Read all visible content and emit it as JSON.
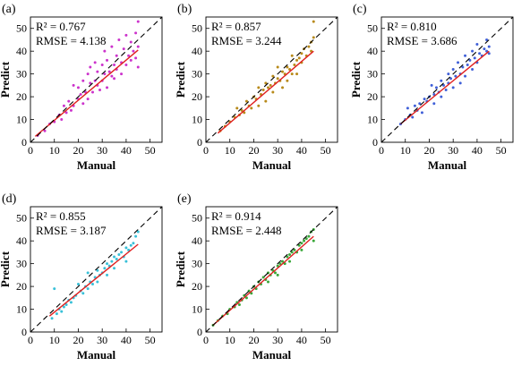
{
  "figure": {
    "axis_labels": {
      "x": "Manual",
      "y": "Predict"
    },
    "ticks": [
      0,
      10,
      20,
      30,
      40,
      50
    ]
  },
  "chart_data": [
    {
      "type": "scatter",
      "panel_label": "(a)",
      "title": "",
      "xlabel": "Manual",
      "ylabel": "Predict",
      "xlim": [
        0,
        55
      ],
      "ylim": [
        0,
        55
      ],
      "stats": [
        "R² = 0.767",
        "RMSE = 4.138"
      ],
      "point_color": "#cc33cc",
      "fit_line": {
        "color": "#e02020",
        "x": [
          2,
          45
        ],
        "y": [
          2.6,
          40.5
        ]
      },
      "reference_line": {
        "style": "dashed",
        "x": [
          0,
          55
        ],
        "y": [
          0,
          55
        ]
      },
      "x": [
        3,
        6,
        8,
        10,
        12,
        13,
        14,
        15,
        16,
        17,
        18,
        18,
        20,
        20,
        21,
        22,
        22,
        23,
        24,
        24,
        25,
        25,
        26,
        27,
        27,
        28,
        28,
        29,
        30,
        30,
        31,
        31,
        32,
        32,
        33,
        34,
        34,
        35,
        35,
        36,
        36,
        37,
        38,
        38,
        39,
        40,
        40,
        41,
        42,
        42,
        43,
        44,
        44,
        45,
        45,
        45
      ],
      "y": [
        3,
        5,
        8,
        9,
        12,
        10,
        16,
        13,
        18,
        14,
        25,
        16,
        19,
        24,
        21,
        27,
        17,
        22,
        30,
        19,
        26,
        33,
        22,
        27,
        35,
        25,
        31,
        23,
        27,
        34,
        30,
        40,
        24,
        36,
        31,
        29,
        42,
        34,
        28,
        38,
        32,
        45,
        35,
        30,
        41,
        34,
        47,
        38,
        36,
        44,
        40,
        37,
        48,
        42,
        53,
        33
      ]
    },
    {
      "type": "scatter",
      "panel_label": "(b)",
      "title": "",
      "xlabel": "Manual",
      "ylabel": "Predict",
      "xlim": [
        0,
        55
      ],
      "ylim": [
        0,
        55
      ],
      "stats": [
        "R² = 0.857",
        "RMSE = 3.244"
      ],
      "point_color": "#b88a1a",
      "fit_line": {
        "color": "#e02020",
        "x": [
          5,
          45
        ],
        "y": [
          4,
          40
        ]
      },
      "reference_line": {
        "style": "dashed",
        "x": [
          0,
          55
        ],
        "y": [
          0,
          55
        ]
      },
      "x": [
        6,
        8,
        10,
        12,
        13,
        14,
        15,
        16,
        17,
        18,
        19,
        20,
        21,
        22,
        22,
        23,
        24,
        25,
        25,
        26,
        27,
        28,
        28,
        29,
        30,
        30,
        31,
        32,
        32,
        33,
        34,
        34,
        35,
        36,
        36,
        37,
        38,
        38,
        39,
        40,
        40,
        41,
        42,
        43,
        44,
        44,
        45,
        45
      ],
      "y": [
        5,
        7,
        9,
        11,
        15,
        12,
        14,
        13,
        18,
        16,
        15,
        20,
        19,
        24,
        16,
        21,
        23,
        26,
        18,
        24,
        25,
        29,
        22,
        26,
        28,
        33,
        27,
        31,
        24,
        30,
        33,
        27,
        32,
        38,
        30,
        34,
        36,
        30,
        37,
        39,
        35,
        41,
        38,
        42,
        40,
        44,
        46,
        53
      ]
    },
    {
      "type": "scatter",
      "panel_label": "(c)",
      "title": "",
      "xlabel": "Manual",
      "ylabel": "Predict",
      "xlim": [
        0,
        55
      ],
      "ylim": [
        0,
        55
      ],
      "stats": [
        "R² = 0.810",
        "RMSE = 3.686"
      ],
      "point_color": "#4060d8",
      "fit_line": {
        "color": "#e02020",
        "x": [
          8,
          45
        ],
        "y": [
          8,
          40
        ]
      },
      "reference_line": {
        "style": "dashed",
        "x": [
          0,
          55
        ],
        "y": [
          0,
          55
        ]
      },
      "x": [
        8,
        10,
        11,
        12,
        13,
        14,
        15,
        16,
        17,
        18,
        19,
        20,
        21,
        22,
        22,
        23,
        24,
        25,
        25,
        26,
        27,
        28,
        28,
        29,
        30,
        30,
        31,
        32,
        33,
        33,
        34,
        35,
        35,
        36,
        37,
        38,
        38,
        39,
        40,
        40,
        41,
        42,
        43,
        44,
        44,
        45,
        45
      ],
      "y": [
        8,
        10,
        15,
        12,
        11,
        16,
        14,
        17,
        13,
        19,
        18,
        20,
        25,
        21,
        17,
        24,
        22,
        27,
        20,
        25,
        23,
        30,
        26,
        28,
        32,
        24,
        29,
        35,
        30,
        26,
        33,
        38,
        29,
        34,
        36,
        40,
        32,
        37,
        43,
        35,
        39,
        38,
        41,
        45,
        40,
        42,
        39
      ]
    },
    {
      "type": "scatter",
      "panel_label": "(d)",
      "title": "",
      "xlabel": "Manual",
      "ylabel": "Predict",
      "xlim": [
        0,
        55
      ],
      "ylim": [
        0,
        55
      ],
      "stats": [
        "R² = 0.855",
        "RMSE = 3.187"
      ],
      "point_color": "#38c0d8",
      "fit_line": {
        "color": "#e02020",
        "x": [
          8,
          45
        ],
        "y": [
          7,
          38.5
        ]
      },
      "reference_line": {
        "style": "dashed",
        "x": [
          0,
          55
        ],
        "y": [
          0,
          55
        ]
      },
      "x": [
        9,
        10,
        11,
        12,
        13,
        14,
        15,
        16,
        17,
        18,
        19,
        20,
        21,
        22,
        23,
        24,
        24,
        25,
        26,
        27,
        28,
        28,
        29,
        30,
        31,
        32,
        32,
        33,
        34,
        35,
        35,
        36,
        37,
        38,
        39,
        40,
        40,
        41,
        42,
        43,
        44,
        45
      ],
      "y": [
        6,
        19,
        8,
        10,
        9,
        11,
        12,
        14,
        13,
        15,
        16,
        21,
        18,
        17,
        20,
        26,
        19,
        22,
        21,
        24,
        27,
        22,
        25,
        26,
        28,
        30,
        25,
        29,
        31,
        33,
        28,
        32,
        34,
        35,
        33,
        37,
        31,
        36,
        38,
        39,
        42,
        44
      ]
    },
    {
      "type": "scatter",
      "panel_label": "(e)",
      "title": "",
      "xlabel": "Manual",
      "ylabel": "Predict",
      "xlim": [
        0,
        55
      ],
      "ylim": [
        0,
        55
      ],
      "stats": [
        "R² = 0.914",
        "RMSE = 2.448"
      ],
      "point_color": "#3aa83a",
      "fit_line": {
        "color": "#e02020",
        "x": [
          3,
          45
        ],
        "y": [
          3,
          42
        ]
      },
      "reference_line": {
        "style": "dashed",
        "x": [
          0,
          55
        ],
        "y": [
          0,
          55
        ]
      },
      "x": [
        3,
        5,
        7,
        9,
        10,
        12,
        13,
        14,
        15,
        16,
        17,
        18,
        19,
        20,
        21,
        22,
        23,
        24,
        25,
        26,
        26,
        27,
        28,
        29,
        30,
        30,
        31,
        32,
        33,
        34,
        35,
        35,
        36,
        37,
        38,
        39,
        40,
        40,
        41,
        42,
        43,
        44,
        45,
        45
      ],
      "y": [
        3,
        5,
        7,
        8,
        10,
        11,
        13,
        12,
        14,
        16,
        15,
        18,
        17,
        20,
        19,
        22,
        21,
        24,
        23,
        26,
        22,
        25,
        27,
        26,
        29,
        25,
        30,
        31,
        30,
        33,
        34,
        31,
        35,
        36,
        35,
        38,
        39,
        36,
        40,
        41,
        42,
        44,
        45,
        40
      ]
    }
  ]
}
